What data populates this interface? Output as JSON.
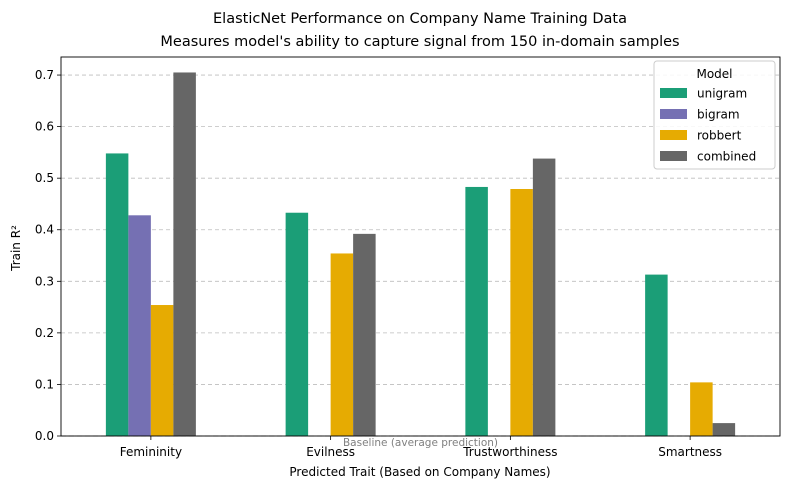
{
  "chart_data": {
    "type": "bar",
    "title_line1": "ElasticNet Performance on Company Name Training Data",
    "title_line2": "Measures model's ability to capture signal from 150 in-domain samples",
    "xlabel": "Predicted Trait (Based on Company Names)",
    "ylabel": "Train R²",
    "categories": [
      "Femininity",
      "Evilness",
      "Trustworthiness",
      "Smartness"
    ],
    "ylim": [
      0,
      0.735
    ],
    "yticks": [
      "0.0",
      "0.1",
      "0.2",
      "0.3",
      "0.4",
      "0.5",
      "0.6",
      "0.7"
    ],
    "grid": "y-dashed",
    "legend": {
      "title": "Model",
      "placement": "top-right"
    },
    "series": [
      {
        "name": "unigram",
        "color": "#1b9e77",
        "values": [
          0.548,
          0.433,
          0.483,
          0.313
        ]
      },
      {
        "name": "bigram",
        "color": "#7570b3",
        "values": [
          0.428,
          0.0,
          0.0,
          0.0
        ]
      },
      {
        "name": "robbert",
        "color": "#e6ab02",
        "values": [
          0.254,
          0.354,
          0.479,
          0.104
        ]
      },
      {
        "name": "combined",
        "color": "#666666",
        "values": [
          0.705,
          0.392,
          0.538,
          0.025
        ]
      }
    ],
    "baseline": {
      "value": 0.0,
      "label": "Baseline (average prediction)",
      "color": "#808080"
    }
  }
}
